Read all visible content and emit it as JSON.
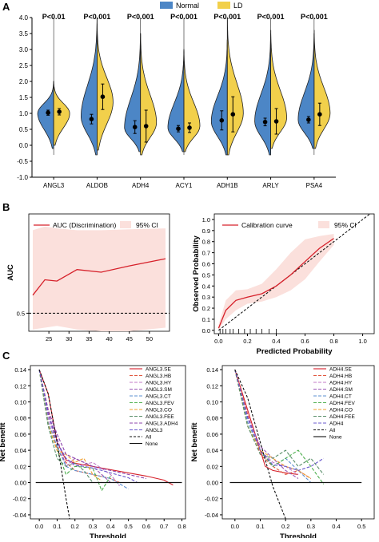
{
  "panel_labels": {
    "a": "A",
    "b": "B",
    "c": "C"
  },
  "chart_data": [
    {
      "type": "violin",
      "legend": [
        {
          "name": "Normal",
          "color": "#4c86c6"
        },
        {
          "name": "LD",
          "color": "#f2d04b"
        }
      ],
      "legend_position": "top",
      "categories": [
        "ANGL3",
        "ALDOB",
        "ADH4",
        "ACY1",
        "ADH1B",
        "ARLY",
        "PSA4"
      ],
      "pvalues": [
        "P<0.01",
        "P<0.001",
        "P<0.001",
        "P<0.001",
        "P<0.001",
        "P<0.001",
        "P<0.001"
      ],
      "ylim": [
        -1.0,
        4.0
      ],
      "yticks": [
        "-1.0",
        "-0.5",
        "0.0",
        "0.5",
        "1.0",
        "1.5",
        "2.0",
        "2.5",
        "3.0",
        "3.5",
        "4.0"
      ],
      "series": [
        {
          "name": "Normal",
          "mean": [
            1.02,
            0.82,
            0.57,
            0.52,
            0.78,
            0.73,
            0.8
          ],
          "err": [
            0.08,
            0.15,
            0.2,
            0.1,
            0.3,
            0.12,
            0.1
          ],
          "min": [
            -0.1,
            -0.3,
            -0.2,
            -0.2,
            -0.3,
            -0.3,
            -0.1
          ],
          "max": [
            2.0,
            4.0,
            3.5,
            3.0,
            3.3,
            3.5,
            3.5
          ],
          "peak": [
            1.0,
            0.9,
            0.55,
            0.55,
            0.75,
            0.75,
            0.8
          ]
        },
        {
          "name": "LD",
          "mean": [
            1.05,
            1.52,
            0.6,
            0.55,
            0.97,
            0.75,
            0.97
          ],
          "err": [
            0.1,
            0.4,
            0.5,
            0.15,
            0.55,
            0.4,
            0.35
          ],
          "min": [
            0.0,
            -0.15,
            -0.3,
            -0.2,
            -0.3,
            -0.1,
            -0.1
          ],
          "max": [
            2.0,
            3.8,
            3.5,
            3.0,
            4.0,
            3.6,
            3.6
          ],
          "peak": [
            1.0,
            1.35,
            0.7,
            0.6,
            1.0,
            0.85,
            1.0
          ]
        }
      ]
    },
    {
      "type": "line",
      "legend": [
        "AUC (Discrimination)",
        "95% CI"
      ],
      "ylabel": "AUC",
      "xlim": [
        20,
        55
      ],
      "ylim": [
        0.4,
        1.05
      ],
      "xticks": [
        25,
        30,
        35,
        40,
        45,
        50
      ],
      "yticks": [
        0.5
      ],
      "x": [
        21,
        24,
        27,
        32,
        38,
        45,
        54
      ],
      "y": [
        0.6,
        0.685,
        0.678,
        0.742,
        0.727,
        0.762,
        0.802
      ],
      "ci_upper": [
        0.96,
        0.98,
        0.97,
        0.96,
        0.96,
        0.965,
        0.97
      ],
      "ci_lower": [
        0.41,
        0.42,
        0.43,
        0.41,
        0.4,
        0.4,
        0.42
      ],
      "reference_line": 0.5
    },
    {
      "type": "line",
      "legend": [
        "Calibration curve",
        "95% CI"
      ],
      "xlabel": "Predicted Probability",
      "ylabel": "Observed Probability",
      "xlim": [
        -0.03,
        1.08
      ],
      "ylim": [
        -0.03,
        1.05
      ],
      "xticks": [
        "0.0",
        "0.2",
        "0.4",
        "0.6",
        "0.8",
        "1.0"
      ],
      "yticks": [
        "0.0",
        "0.1",
        "0.2",
        "0.3",
        "0.4",
        "0.5",
        "0.6",
        "0.7",
        "0.8",
        "0.9",
        "1.0"
      ],
      "x": [
        0.0,
        0.05,
        0.12,
        0.2,
        0.3,
        0.4,
        0.5,
        0.6,
        0.7,
        0.8
      ],
      "y": [
        0.02,
        0.18,
        0.27,
        0.3,
        0.33,
        0.4,
        0.5,
        0.62,
        0.74,
        0.83
      ],
      "ci_upper": [
        0.05,
        0.27,
        0.36,
        0.37,
        0.42,
        0.55,
        0.7,
        0.82,
        0.85,
        0.87
      ],
      "ci_lower": [
        0.0,
        0.1,
        0.18,
        0.24,
        0.26,
        0.3,
        0.36,
        0.46,
        0.62,
        0.77
      ],
      "rug": [
        0.01,
        0.03,
        0.05,
        0.08,
        0.1,
        0.14,
        0.18,
        0.22,
        0.26,
        0.3,
        0.35,
        0.4
      ]
    },
    {
      "type": "line",
      "xlabel": "Threshold",
      "ylabel": "Net benefit",
      "xlim": [
        -0.05,
        0.82
      ],
      "ylim": [
        -0.045,
        0.145
      ],
      "xticks": [
        "0.0",
        "0.1",
        "0.2",
        "0.3",
        "0.4",
        "0.5",
        "0.6",
        "0.7",
        "0.8"
      ],
      "yticks": [
        "-0.04",
        "-0.02",
        "0.00",
        "0.02",
        "0.04",
        "0.06",
        "0.08",
        "0.10",
        "0.12",
        "0.14"
      ],
      "series": [
        {
          "name": "ANGL3.SE",
          "color": "#d6202a",
          "dash": "",
          "x": [
            0.0,
            0.05,
            0.1,
            0.15,
            0.2,
            0.3,
            0.4,
            0.5,
            0.6,
            0.7,
            0.75
          ],
          "y": [
            0.14,
            0.11,
            0.05,
            0.028,
            0.024,
            0.02,
            0.016,
            0.012,
            0.008,
            0.003,
            -0.003
          ]
        },
        {
          "name": "ANGL3.HB",
          "color": "#e0553d",
          "dash": "4,2",
          "x": [
            0.0,
            0.05,
            0.1,
            0.15,
            0.2,
            0.3,
            0.4,
            0.45
          ],
          "y": [
            0.14,
            0.09,
            0.04,
            0.025,
            0.015,
            0.01,
            0.005,
            0.0
          ]
        },
        {
          "name": "ANGL3.HY",
          "color": "#c07ac7",
          "dash": "4,2",
          "x": [
            0.0,
            0.05,
            0.1,
            0.15,
            0.2,
            0.3,
            0.4,
            0.45
          ],
          "y": [
            0.14,
            0.08,
            0.05,
            0.03,
            0.02,
            0.025,
            0.01,
            -0.004
          ]
        },
        {
          "name": "ANGL3.SM",
          "color": "#9b59b6",
          "dash": "4,2",
          "x": [
            0.0,
            0.05,
            0.1,
            0.15,
            0.2,
            0.3,
            0.4
          ],
          "y": [
            0.14,
            0.085,
            0.055,
            0.02,
            0.03,
            0.02,
            0.0
          ]
        },
        {
          "name": "ANGL3.CT",
          "color": "#5b8fd0",
          "dash": "4,2",
          "x": [
            0.0,
            0.05,
            0.1,
            0.15,
            0.2,
            0.3,
            0.4,
            0.5
          ],
          "y": [
            0.14,
            0.075,
            0.045,
            0.02,
            0.015,
            0.01,
            0.005,
            -0.008
          ]
        },
        {
          "name": "ANGL3.FEV",
          "color": "#4cae4c",
          "dash": "4,2",
          "x": [
            0.0,
            0.05,
            0.1,
            0.15,
            0.2,
            0.3,
            0.35,
            0.4
          ],
          "y": [
            0.14,
            0.07,
            0.04,
            0.01,
            0.02,
            0.018,
            -0.01,
            0.008
          ]
        },
        {
          "name": "ANGL3.CO",
          "color": "#f0a030",
          "dash": "4,2",
          "x": [
            0.0,
            0.05,
            0.1,
            0.15,
            0.2,
            0.25,
            0.3,
            0.35
          ],
          "y": [
            0.14,
            0.072,
            0.04,
            0.035,
            0.025,
            0.03,
            0.01,
            0.002
          ]
        },
        {
          "name": "ANGL3.FEE",
          "color": "#5a8f6a",
          "dash": "4,2",
          "x": [
            0.0,
            0.05,
            0.1,
            0.15,
            0.2,
            0.25,
            0.3
          ],
          "y": [
            0.14,
            0.07,
            0.03,
            0.02,
            0.024,
            0.015,
            0.0
          ]
        },
        {
          "name": "ANGL3.ADH4",
          "color": "#8e44ad",
          "dash": "4,2",
          "x": [
            0.0,
            0.05,
            0.1,
            0.15,
            0.2,
            0.3,
            0.4,
            0.5,
            0.6
          ],
          "y": [
            0.14,
            0.09,
            0.06,
            0.035,
            0.03,
            0.02,
            0.015,
            0.01,
            0.005
          ]
        },
        {
          "name": "ANGL3",
          "color": "#6a5acd",
          "dash": "4,2",
          "x": [
            0.0,
            0.05,
            0.1,
            0.15,
            0.2,
            0.3,
            0.4,
            0.5,
            0.55
          ],
          "y": [
            0.14,
            0.085,
            0.05,
            0.03,
            0.022,
            0.018,
            0.012,
            0.006,
            0.0
          ]
        },
        {
          "name": "All",
          "color": "#111111",
          "dash": "3,2",
          "x": [
            0.0,
            0.05,
            0.1,
            0.15,
            0.17
          ],
          "y": [
            0.14,
            0.11,
            0.05,
            -0.02,
            -0.045
          ]
        },
        {
          "name": "None",
          "color": "#111111",
          "dash": "",
          "x": [
            -0.02,
            0.8
          ],
          "y": [
            0.0,
            0.0
          ]
        }
      ]
    },
    {
      "type": "line",
      "xlabel": "Threshold",
      "ylabel": "Net benefit",
      "xlim": [
        -0.05,
        0.55
      ],
      "ylim": [
        -0.045,
        0.145
      ],
      "xticks": [
        "0.0",
        "0.1",
        "0.2",
        "0.3",
        "0.4",
        "0.5"
      ],
      "yticks": [
        "-0.04",
        "-0.02",
        "0.00",
        "0.02",
        "0.04",
        "0.06",
        "0.08",
        "0.10",
        "0.12",
        "0.14"
      ],
      "series": [
        {
          "name": "ADH4.SE",
          "color": "#d6202a",
          "dash": "",
          "x": [
            0.0,
            0.05,
            0.1,
            0.12,
            0.15,
            0.2,
            0.25
          ],
          "y": [
            0.14,
            0.09,
            0.04,
            0.02,
            0.015,
            0.012,
            0.01
          ]
        },
        {
          "name": "ADH4.HB",
          "color": "#e0553d",
          "dash": "4,2",
          "x": [
            0.0,
            0.05,
            0.1,
            0.15,
            0.2,
            0.25,
            0.3
          ],
          "y": [
            0.14,
            0.085,
            0.035,
            0.02,
            0.01,
            0.015,
            0.005
          ]
        },
        {
          "name": "ADH4.HY",
          "color": "#c07ac7",
          "dash": "4,2",
          "x": [
            0.0,
            0.05,
            0.1,
            0.15,
            0.2,
            0.25
          ],
          "y": [
            0.14,
            0.08,
            0.04,
            0.025,
            0.02,
            0.01
          ]
        },
        {
          "name": "ADH4.SM",
          "color": "#9b59b6",
          "dash": "4,2",
          "x": [
            0.0,
            0.05,
            0.1,
            0.15,
            0.2,
            0.25
          ],
          "y": [
            0.14,
            0.082,
            0.045,
            0.03,
            0.015,
            0.005
          ]
        },
        {
          "name": "ADH4.CT",
          "color": "#5b8fd0",
          "dash": "4,2",
          "x": [
            0.0,
            0.05,
            0.1,
            0.15,
            0.2,
            0.25,
            0.3
          ],
          "y": [
            0.14,
            0.075,
            0.04,
            0.02,
            0.03,
            0.015,
            0.0
          ]
        },
        {
          "name": "ADH4.FEV",
          "color": "#4cae4c",
          "dash": "4,2",
          "x": [
            0.0,
            0.05,
            0.1,
            0.15,
            0.2,
            0.25,
            0.3,
            0.35
          ],
          "y": [
            0.14,
            0.07,
            0.04,
            0.02,
            0.03,
            0.04,
            0.02,
            -0.002
          ]
        },
        {
          "name": "ADH4.CO",
          "color": "#f0a030",
          "dash": "4,2",
          "x": [
            0.0,
            0.05,
            0.1,
            0.15,
            0.2,
            0.25,
            0.3
          ],
          "y": [
            0.14,
            0.07,
            0.04,
            0.03,
            0.02,
            0.015,
            0.005
          ]
        },
        {
          "name": "ADH4.FEE",
          "color": "#5a8f6a",
          "dash": "4,2",
          "x": [
            0.0,
            0.05,
            0.1,
            0.15,
            0.2,
            0.25,
            0.3,
            0.35
          ],
          "y": [
            0.14,
            0.07,
            0.035,
            0.03,
            0.04,
            0.02,
            0.03,
            0.01
          ]
        },
        {
          "name": "ADH4",
          "color": "#6a5acd",
          "dash": "4,2",
          "x": [
            0.0,
            0.05,
            0.1,
            0.15,
            0.2,
            0.25,
            0.3,
            0.35
          ],
          "y": [
            0.14,
            0.08,
            0.04,
            0.022,
            0.02,
            0.015,
            0.02,
            0.03
          ]
        },
        {
          "name": "All",
          "color": "#111111",
          "dash": "3,2",
          "x": [
            0.0,
            0.05,
            0.1,
            0.15,
            0.2
          ],
          "y": [
            0.14,
            0.105,
            0.05,
            -0.005,
            -0.045
          ]
        },
        {
          "name": "None",
          "color": "#111111",
          "dash": "",
          "x": [
            -0.02,
            0.5
          ],
          "y": [
            0.0,
            0.0
          ]
        }
      ]
    }
  ]
}
